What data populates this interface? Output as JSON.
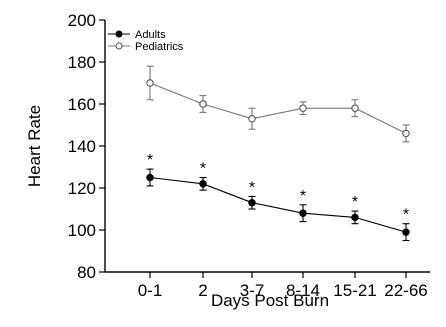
{
  "chart_data": {
    "type": "line",
    "xlabel": "Days Post Burn",
    "ylabel": "Heart Rate",
    "categories": [
      "0-1",
      "2",
      "3-7",
      "8-14",
      "15-21",
      "22-66"
    ],
    "ylim": [
      80,
      200
    ],
    "yticks": [
      80,
      100,
      120,
      140,
      160,
      180,
      200
    ],
    "grid": false,
    "legend_position": "top-left",
    "significance_marker": "*",
    "series": [
      {
        "name": "Adults",
        "marker": "filled-circle",
        "color": "#000000",
        "values": [
          125,
          122,
          113,
          108,
          106,
          99
        ],
        "errors": [
          4,
          3,
          3,
          4,
          3,
          4
        ],
        "significant": [
          true,
          true,
          true,
          true,
          true,
          true
        ]
      },
      {
        "name": "Pediatrics",
        "marker": "open-circle",
        "color": "#777777",
        "values": [
          170,
          160,
          153,
          158,
          158,
          146
        ],
        "errors": [
          8,
          4,
          5,
          3,
          4,
          4
        ],
        "significant": [
          false,
          false,
          false,
          false,
          false,
          false
        ]
      }
    ]
  }
}
